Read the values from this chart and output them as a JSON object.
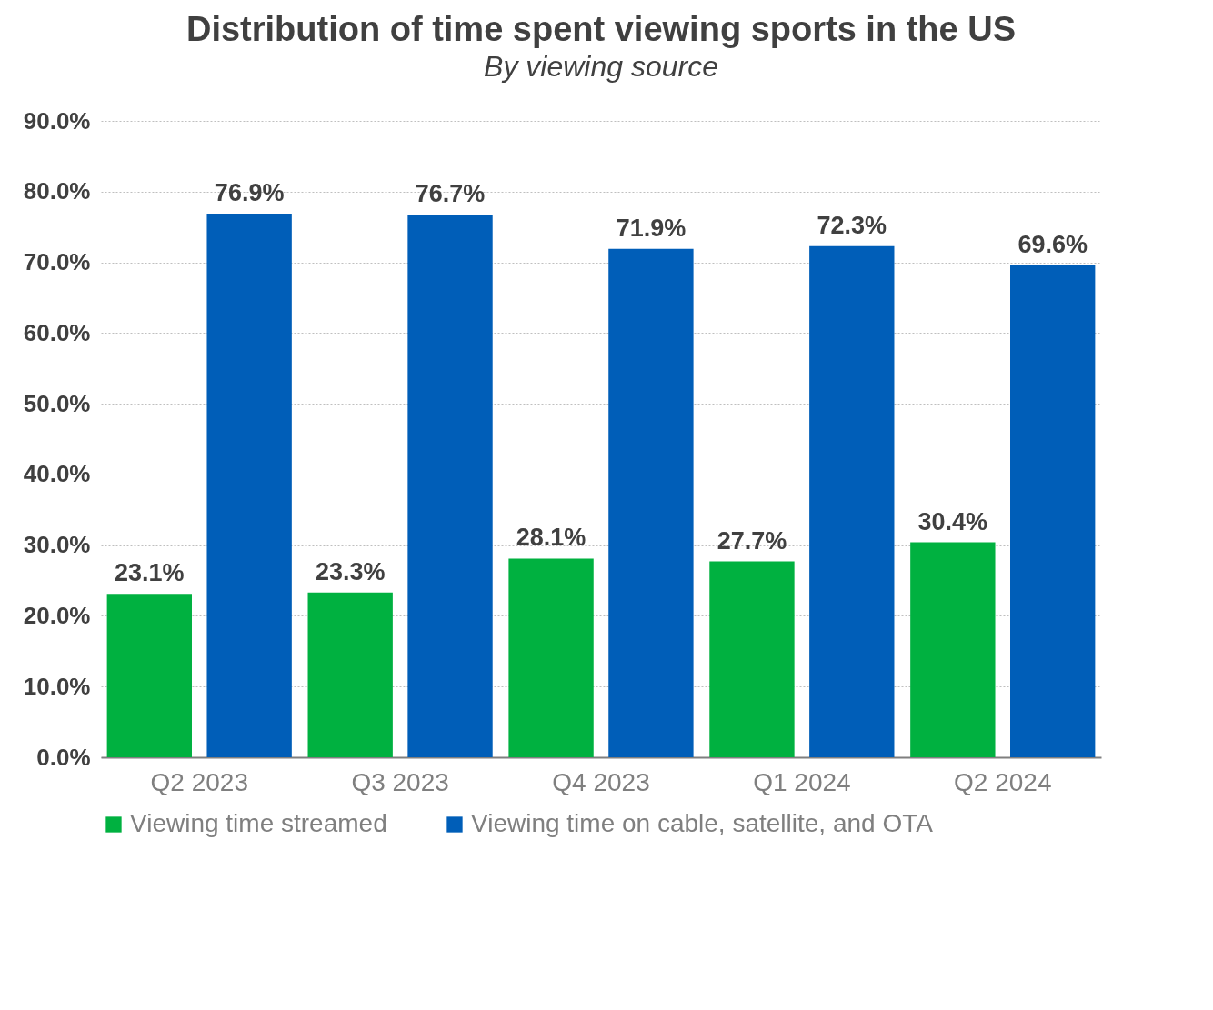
{
  "chart_data": {
    "type": "bar",
    "title": "Distribution of time spent viewing sports in the US",
    "subtitle": "By viewing source",
    "categories": [
      "Q2 2023",
      "Q3 2023",
      "Q4 2023",
      "Q1 2024",
      "Q2 2024"
    ],
    "series": [
      {
        "name": "Viewing time streamed",
        "color": "#00b140",
        "values": [
          23.1,
          23.3,
          28.1,
          27.7,
          30.4
        ],
        "value_labels": [
          "23.1%",
          "23.3%",
          "28.1%",
          "27.7%",
          "30.4%"
        ]
      },
      {
        "name": "Viewing time on cable, satellite, and OTA",
        "color": "#005eb8",
        "values": [
          76.9,
          76.7,
          71.9,
          72.3,
          69.6
        ],
        "value_labels": [
          "76.9%",
          "76.7%",
          "71.9%",
          "72.3%",
          "69.6%"
        ]
      }
    ],
    "ylim": [
      0,
      90
    ],
    "yticks": [
      {
        "value": 0,
        "label": "0.0%"
      },
      {
        "value": 10,
        "label": "10.0%"
      },
      {
        "value": 20,
        "label": "20.0%"
      },
      {
        "value": 30,
        "label": "30.0%"
      },
      {
        "value": 40,
        "label": "40.0%"
      },
      {
        "value": 50,
        "label": "50.0%"
      },
      {
        "value": 60,
        "label": "60.0%"
      },
      {
        "value": 70,
        "label": "70.0%"
      },
      {
        "value": 80,
        "label": "80.0%"
      },
      {
        "value": 90,
        "label": "90.0%"
      }
    ],
    "grid": "y",
    "legend": "bottom"
  }
}
